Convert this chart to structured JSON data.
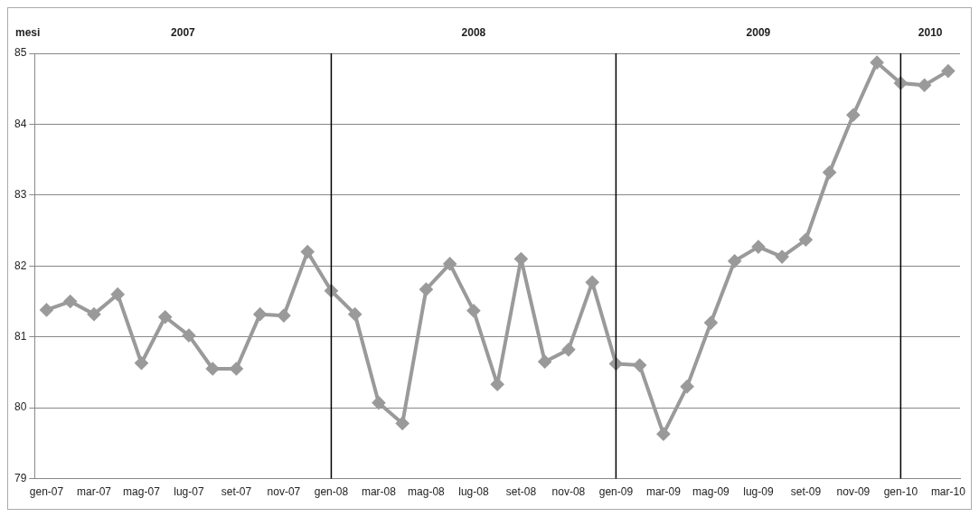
{
  "chart_data": {
    "type": "line",
    "ylabel": "mesi",
    "categories": [
      "gen-07",
      null,
      "mar-07",
      null,
      "mag-07",
      null,
      "lug-07",
      null,
      "set-07",
      null,
      "nov-07",
      null,
      "gen-08",
      null,
      "mar-08",
      null,
      "mag-08",
      null,
      "lug-08",
      null,
      "set-08",
      null,
      "nov-08",
      null,
      "gen-09",
      null,
      "mar-09",
      null,
      "mag-09",
      null,
      "lug-09",
      null,
      "set-09",
      null,
      "nov-09",
      null,
      "gen-10",
      null,
      "mar-10"
    ],
    "series": [
      {
        "color": "#9a9a9a",
        "values": [
          81.38,
          81.5,
          81.32,
          81.6,
          80.63,
          81.28,
          81.02,
          80.55,
          80.55,
          81.32,
          81.3,
          82.2,
          81.65,
          81.32,
          80.07,
          79.78,
          81.67,
          82.03,
          81.37,
          80.33,
          82.1,
          80.65,
          80.82,
          81.77,
          80.62,
          80.6,
          79.63,
          80.3,
          81.2,
          82.07,
          82.27,
          82.13,
          82.37,
          83.32,
          84.13,
          84.87,
          84.58,
          84.55,
          84.75
        ]
      }
    ],
    "ylim": [
      79,
      85
    ],
    "yticks": [
      79,
      80,
      81,
      82,
      83,
      84,
      85
    ],
    "grid": "y",
    "marker": "diamond",
    "line_style": "solid",
    "legend": false,
    "ref_lines": [
      {
        "axis": "x",
        "value": "gen-08",
        "color": "#000000"
      },
      {
        "axis": "x",
        "value": "gen-09",
        "color": "#000000"
      },
      {
        "axis": "x",
        "value": "gen-10",
        "color": "#000000"
      }
    ],
    "annotations": [
      "2007",
      "2008",
      "2009",
      "2010"
    ]
  }
}
